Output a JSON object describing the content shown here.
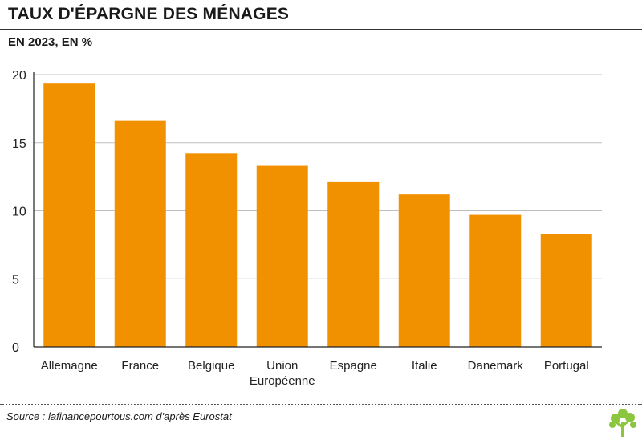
{
  "title": "TAUX D'ÉPARGNE DES MÉNAGES",
  "subtitle": "EN 2023, EN %",
  "source": "Source : lafinancepourtous.com d'après Eurostat",
  "colors": {
    "bar": "#F29100",
    "grid": "#bfbfbf",
    "axis": "#222222",
    "logo": "#8CC63F"
  },
  "logo_icon": "tree-logo-icon",
  "chart_data": {
    "type": "bar",
    "categories": [
      "Allemagne",
      "France",
      "Belgique",
      "Union Européenne",
      "Espagne",
      "Italie",
      "Danemark",
      "Portugal"
    ],
    "category_lines": [
      [
        "Allemagne"
      ],
      [
        "France"
      ],
      [
        "Belgique"
      ],
      [
        "Union",
        "Européenne"
      ],
      [
        "Espagne"
      ],
      [
        "Italie"
      ],
      [
        "Danemark"
      ],
      [
        "Portugal"
      ]
    ],
    "values": [
      19.4,
      16.6,
      14.2,
      13.3,
      12.1,
      11.2,
      9.7,
      8.3
    ],
    "yticks": [
      0,
      5,
      10,
      15,
      20
    ],
    "ylim": [
      0,
      20
    ],
    "grid": true
  }
}
